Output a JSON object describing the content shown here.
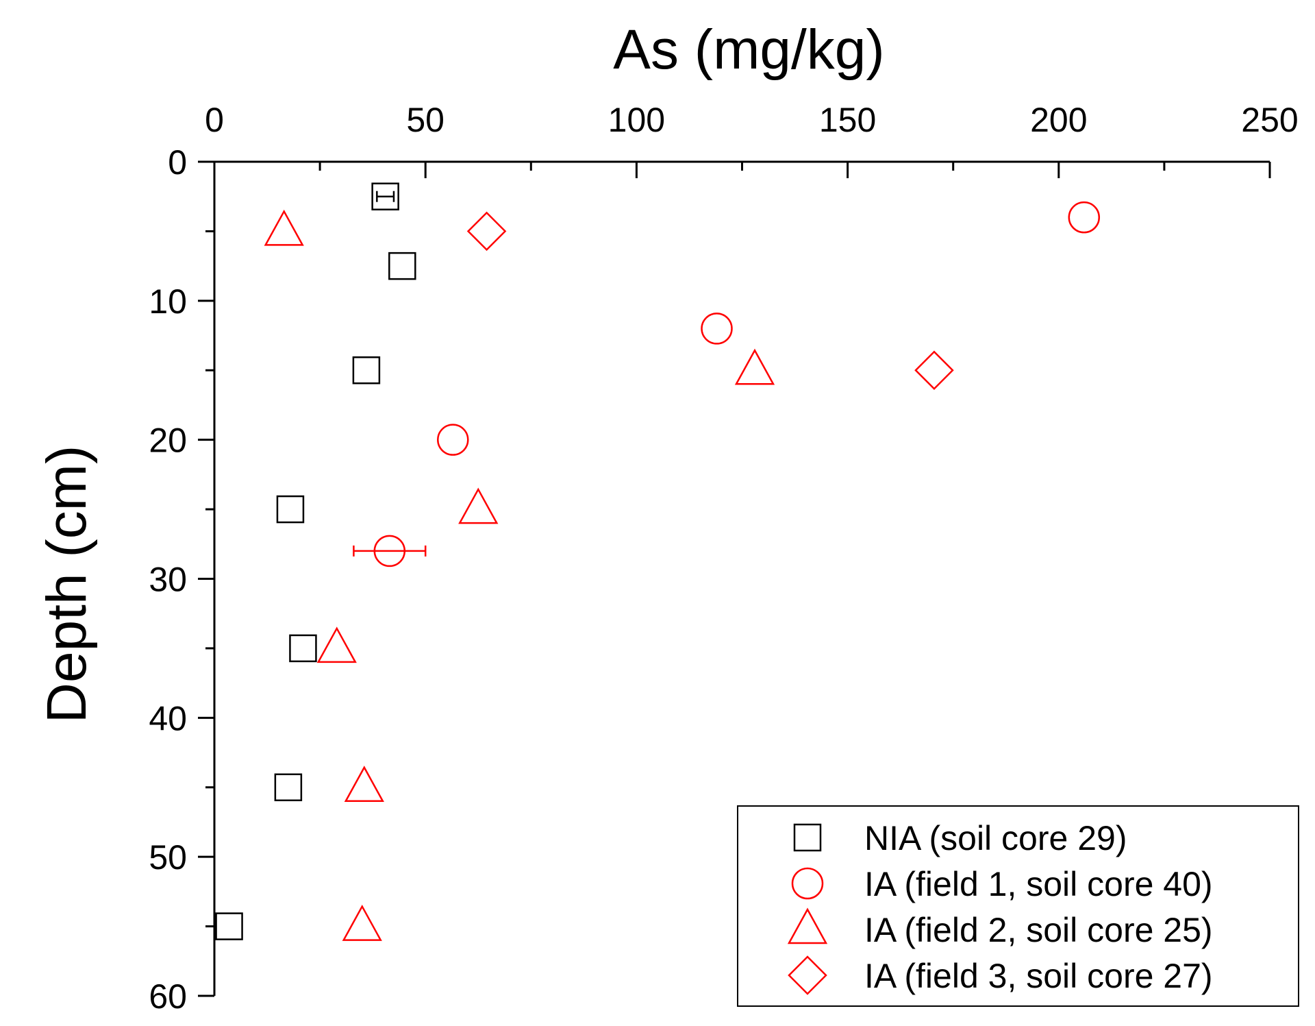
{
  "chart_data": {
    "type": "scatter",
    "title": "",
    "xlabel": "As (mg/kg)",
    "ylabel": "Depth (cm)",
    "x_axis_position": "top",
    "y_axis_inverted": true,
    "xlim": [
      0,
      250
    ],
    "ylim": [
      0,
      60
    ],
    "x_ticks": [
      0,
      50,
      100,
      150,
      200,
      250
    ],
    "y_ticks": [
      0,
      10,
      20,
      30,
      40,
      50,
      60
    ],
    "x_tick_labels": [
      "0",
      "50",
      "100",
      "150",
      "200",
      "250"
    ],
    "y_tick_labels": [
      "0",
      "10",
      "20",
      "30",
      "40",
      "50",
      "60"
    ],
    "grid": false,
    "legend_position": "bottom-right",
    "series": [
      {
        "name": "NIA (soil core 29)",
        "marker": "square",
        "color": "#000000",
        "points": [
          {
            "x": 40.5,
            "y": 2.5,
            "xerr": 2
          },
          {
            "x": 44.5,
            "y": 7.5
          },
          {
            "x": 36,
            "y": 15
          },
          {
            "x": 18,
            "y": 25
          },
          {
            "x": 21,
            "y": 35
          },
          {
            "x": 17.5,
            "y": 45
          },
          {
            "x": 3.5,
            "y": 55
          }
        ]
      },
      {
        "name": "IA (field 1, soil core 40)",
        "marker": "circle",
        "color": "#ff0000",
        "points": [
          {
            "x": 206,
            "y": 4
          },
          {
            "x": 119,
            "y": 12
          },
          {
            "x": 56.5,
            "y": 20
          },
          {
            "x": 41.5,
            "y": 28,
            "xerr": 8.5
          }
        ]
      },
      {
        "name": "IA (field 2, soil core 25)",
        "marker": "triangle",
        "color": "#ff0000",
        "points": [
          {
            "x": 16.5,
            "y": 5
          },
          {
            "x": 128,
            "y": 15
          },
          {
            "x": 62.5,
            "y": 25
          },
          {
            "x": 29,
            "y": 35
          },
          {
            "x": 35.5,
            "y": 45
          },
          {
            "x": 35,
            "y": 55
          }
        ]
      },
      {
        "name": "IA (field 3, soil core 27)",
        "marker": "diamond",
        "color": "#ff0000",
        "points": [
          {
            "x": 64.5,
            "y": 5
          },
          {
            "x": 170.5,
            "y": 15
          }
        ]
      }
    ]
  }
}
